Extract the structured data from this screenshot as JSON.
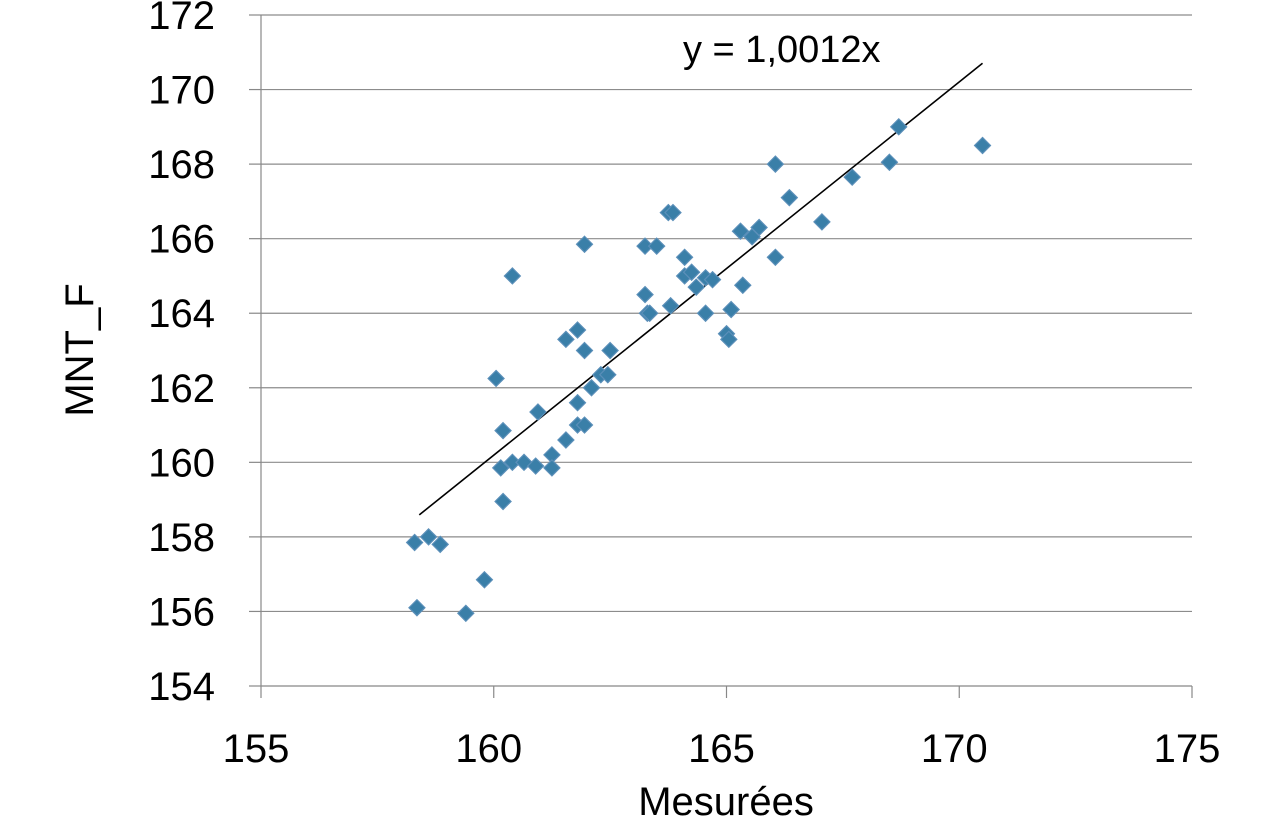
{
  "chart_data": {
    "type": "scatter",
    "title": "",
    "xlabel": "Mesurées",
    "ylabel": "MNT_F",
    "xlim": [
      155,
      175
    ],
    "ylim": [
      154,
      172
    ],
    "xticks": [
      155,
      160,
      165,
      170,
      175
    ],
    "yticks": [
      154,
      156,
      158,
      160,
      162,
      164,
      166,
      168,
      170,
      172
    ],
    "xtick_labels": [
      "155",
      "160",
      "165",
      "170",
      "175"
    ],
    "ytick_labels": [
      "154",
      "156",
      "158",
      "160",
      "162",
      "164",
      "166",
      "168",
      "170",
      "172"
    ],
    "grid": "horizontal",
    "legend": "none",
    "marker": "diamond",
    "marker_color": "#3A7FA8",
    "marker_edge_color": "#5B8FB9",
    "trendline": {
      "label": "y = 1,0012x",
      "slope": 1.0012,
      "intercept": 0,
      "x_range": [
        158.4,
        170.5
      ],
      "color": "#000000"
    },
    "series": [
      {
        "points": [
          [
            158.3,
            157.85
          ],
          [
            158.6,
            158.0
          ],
          [
            158.85,
            157.8
          ],
          [
            158.35,
            156.1
          ],
          [
            159.4,
            155.95
          ],
          [
            159.8,
            156.85
          ],
          [
            160.05,
            162.25
          ],
          [
            160.2,
            160.85
          ],
          [
            160.15,
            159.85
          ],
          [
            160.4,
            160.0
          ],
          [
            160.65,
            160.0
          ],
          [
            160.9,
            159.9
          ],
          [
            160.2,
            158.95
          ],
          [
            160.4,
            165.0
          ],
          [
            160.95,
            161.35
          ],
          [
            161.25,
            160.2
          ],
          [
            161.25,
            159.85
          ],
          [
            161.55,
            160.6
          ],
          [
            161.55,
            163.3
          ],
          [
            161.8,
            163.55
          ],
          [
            161.8,
            161.6
          ],
          [
            161.8,
            161.0
          ],
          [
            161.95,
            161.0
          ],
          [
            161.95,
            165.85
          ],
          [
            161.95,
            163.0
          ],
          [
            162.1,
            162.0
          ],
          [
            162.3,
            162.35
          ],
          [
            162.45,
            162.35
          ],
          [
            162.5,
            163.0
          ],
          [
            163.25,
            165.8
          ],
          [
            163.5,
            165.8
          ],
          [
            163.25,
            164.5
          ],
          [
            163.3,
            164.0
          ],
          [
            163.35,
            164.0
          ],
          [
            163.75,
            166.7
          ],
          [
            163.85,
            166.7
          ],
          [
            163.8,
            164.2
          ],
          [
            164.1,
            165.0
          ],
          [
            164.1,
            165.5
          ],
          [
            164.25,
            165.1
          ],
          [
            164.35,
            164.7
          ],
          [
            164.55,
            164.95
          ],
          [
            164.7,
            164.9
          ],
          [
            164.55,
            164.0
          ],
          [
            165.0,
            163.45
          ],
          [
            165.05,
            163.3
          ],
          [
            165.1,
            164.1
          ],
          [
            165.3,
            166.2
          ],
          [
            165.35,
            164.75
          ],
          [
            165.55,
            166.05
          ],
          [
            165.7,
            166.3
          ],
          [
            166.05,
            168.0
          ],
          [
            166.05,
            165.5
          ],
          [
            166.35,
            167.1
          ],
          [
            167.05,
            166.45
          ],
          [
            167.7,
            167.65
          ],
          [
            168.5,
            168.05
          ],
          [
            168.7,
            169.0
          ],
          [
            170.5,
            168.5
          ]
        ]
      }
    ]
  }
}
